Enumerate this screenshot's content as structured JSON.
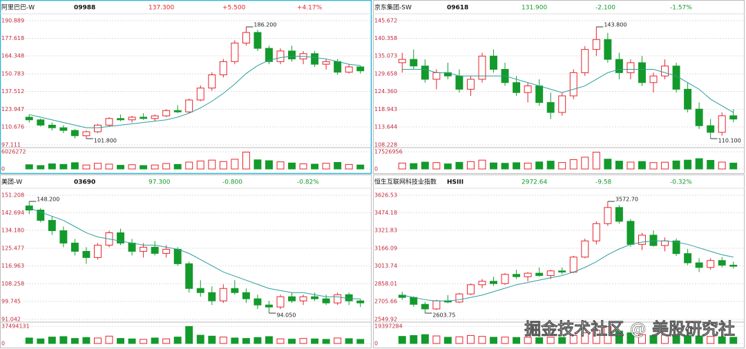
{
  "watermark": "掘金技术社区 @ 美股研究社",
  "up_color": "#e8212a",
  "down_color": "#139a2b",
  "line_color": "#2a9d9a",
  "chart_data": [
    {
      "type": "candlestick",
      "title": "阿里巴巴-W",
      "code": "09988",
      "price": "137.300",
      "change": "+5.500",
      "change_pct": "+4.17%",
      "color": "#e8212a",
      "selected": true,
      "ylim": [
        97.111,
        190.889
      ],
      "yticks": [
        190.889,
        177.618,
        164.348,
        150.783,
        137.512,
        123.947,
        110.676,
        97.111
      ],
      "vol_ylim": [
        0,
        6026272
      ],
      "vol_ticks": [
        6026272,
        0
      ],
      "annotations": [
        {
          "value": 186.2,
          "label": "186.200"
        },
        {
          "value": 101.8,
          "label": "101.800"
        }
      ],
      "candles": [
        [
          118,
          120,
          114,
          116
        ],
        [
          116,
          117,
          111,
          112
        ],
        [
          112,
          114,
          108,
          110
        ],
        [
          110,
          112,
          106,
          108
        ],
        [
          108,
          109,
          102,
          104
        ],
        [
          104,
          108,
          101.8,
          107
        ],
        [
          107,
          113,
          106,
          112
        ],
        [
          112,
          118,
          111,
          117
        ],
        [
          117,
          120,
          115,
          116
        ],
        [
          116,
          119,
          114,
          118
        ],
        [
          118,
          121,
          116,
          117
        ],
        [
          117,
          120,
          115,
          119
        ],
        [
          119,
          124,
          118,
          123
        ],
        [
          123,
          127,
          121,
          122
        ],
        [
          122,
          132,
          121,
          131
        ],
        [
          131,
          142,
          130,
          140
        ],
        [
          140,
          152,
          138,
          150
        ],
        [
          150,
          162,
          148,
          160
        ],
        [
          160,
          176,
          158,
          174
        ],
        [
          174,
          186.2,
          172,
          182
        ],
        [
          182,
          184,
          168,
          170
        ],
        [
          170,
          172,
          158,
          160
        ],
        [
          160,
          170,
          158,
          168
        ],
        [
          168,
          172,
          160,
          162
        ],
        [
          162,
          168,
          158,
          166
        ],
        [
          166,
          168,
          156,
          158
        ],
        [
          158,
          162,
          154,
          160
        ],
        [
          160,
          162,
          150,
          152
        ],
        [
          152,
          158,
          151,
          156
        ],
        [
          156,
          157,
          151,
          153
        ]
      ],
      "line": [
        120,
        118,
        116,
        114,
        112,
        110,
        110,
        111,
        112,
        113,
        114,
        115,
        116,
        118,
        121,
        125,
        130,
        136,
        143,
        151,
        157,
        161,
        163,
        164,
        164,
        163,
        162,
        160,
        158,
        157
      ],
      "volumes": [
        1500000,
        1200000,
        1800000,
        1600000,
        2200000,
        1400000,
        2000000,
        1700000,
        1300000,
        1500000,
        1200000,
        1400000,
        1900000,
        1600000,
        2400000,
        2800000,
        3100000,
        2600000,
        3400000,
        5900000,
        3200000,
        2900000,
        2500000,
        2100000,
        1800000,
        1700000,
        2000000,
        2300000,
        1600000,
        1400000
      ]
    },
    {
      "type": "candlestick",
      "title": "京东集团-SW",
      "code": "09618",
      "price": "131.900",
      "change": "-2.100",
      "change_pct": "-1.57%",
      "color": "#139a2b",
      "selected": false,
      "ylim": [
        108.228,
        145.672
      ],
      "yticks": [
        145.672,
        140.358,
        135.073,
        129.658,
        {
          "value": 124.36,
          "label": "124.360"
        },
        118.943,
        113.644,
        108.228
      ],
      "vol_ylim": [
        0,
        17526956
      ],
      "vol_ticks": [
        17526956,
        0
      ],
      "annotations": [
        {
          "value": 143.8,
          "label": "143.800"
        },
        {
          "value": 110.1,
          "label": "110.100"
        }
      ],
      "candles": [
        [
          133,
          136,
          130,
          134
        ],
        [
          134,
          137,
          131,
          132
        ],
        [
          132,
          134,
          127,
          128
        ],
        [
          128,
          131,
          125,
          130
        ],
        [
          130,
          133,
          128,
          129
        ],
        [
          129,
          131,
          124,
          125
        ],
        [
          125,
          129,
          123,
          128
        ],
        [
          128,
          136,
          127,
          135
        ],
        [
          135,
          137,
          130,
          131
        ],
        [
          131,
          133,
          126,
          127
        ],
        [
          127,
          129,
          123,
          124
        ],
        [
          124,
          127,
          121,
          126
        ],
        [
          126,
          128,
          120,
          121
        ],
        [
          121,
          124,
          116,
          118
        ],
        [
          118,
          124,
          117,
          123
        ],
        [
          123,
          131,
          122,
          130
        ],
        [
          130,
          138,
          129,
          137
        ],
        [
          137,
          143.8,
          135,
          140
        ],
        [
          140,
          142,
          133,
          134
        ],
        [
          134,
          136,
          128,
          130
        ],
        [
          130,
          134,
          128,
          133
        ],
        [
          133,
          135,
          126,
          127
        ],
        [
          127,
          130,
          124,
          129
        ],
        [
          129,
          134,
          128,
          132
        ],
        [
          132,
          133,
          124,
          125
        ],
        [
          125,
          127,
          118,
          119
        ],
        [
          119,
          121,
          113,
          114
        ],
        [
          114,
          116,
          110.1,
          112
        ],
        [
          112,
          118,
          111,
          117
        ],
        [
          117,
          119,
          115,
          116
        ]
      ],
      "line": [
        131,
        131,
        131,
        130,
        130,
        129,
        129,
        129,
        129,
        129,
        128,
        127,
        126,
        125,
        124,
        125,
        126,
        128,
        130,
        131,
        131,
        131,
        131,
        130,
        129,
        127,
        125,
        122,
        120,
        118
      ],
      "volumes": [
        6000000,
        5500000,
        7000000,
        6500000,
        5200000,
        6800000,
        7500000,
        9000000,
        6200000,
        5800000,
        6400000,
        6000000,
        7200000,
        8000000,
        6600000,
        9500000,
        12000000,
        17000000,
        10000000,
        8000000,
        7000000,
        7600000,
        6500000,
        6900000,
        8200000,
        9000000,
        10500000,
        8800000,
        7000000,
        6000000
      ]
    },
    {
      "type": "candlestick",
      "title": "美团-W",
      "code": "03690",
      "price": "97.300",
      "change": "-0.800",
      "change_pct": "-0.82%",
      "color": "#139a2b",
      "selected": false,
      "ylim": [
        91.042,
        151.208
      ],
      "yticks": [
        151.208,
        142.694,
        {
          "value": 134.18,
          "label": "134.180"
        },
        125.477,
        116.963,
        108.258,
        99.745,
        91.042
      ],
      "vol_ylim": [
        0,
        37494131
      ],
      "vol_ticks": [
        37494131,
        0
      ],
      "annotations": [
        {
          "value": 148.2,
          "label": "148.200"
        },
        {
          "value": 94.05,
          "label": "94.050"
        }
      ],
      "candles": [
        [
          146,
          148.2,
          142,
          144
        ],
        [
          144,
          145,
          138,
          139
        ],
        [
          139,
          141,
          132,
          134
        ],
        [
          134,
          136,
          126,
          128
        ],
        [
          128,
          130,
          122,
          124
        ],
        [
          124,
          126,
          118,
          121
        ],
        [
          121,
          128,
          120,
          127
        ],
        [
          127,
          134,
          126,
          133
        ],
        [
          133,
          135,
          127,
          128
        ],
        [
          128,
          130,
          122,
          124
        ],
        [
          124,
          128,
          121,
          126
        ],
        [
          126,
          129,
          122,
          123
        ],
        [
          123,
          127,
          121,
          125
        ],
        [
          125,
          126,
          117,
          118
        ],
        [
          118,
          119,
          104,
          106
        ],
        [
          106,
          110,
          102,
          104
        ],
        [
          104,
          107,
          98,
          100
        ],
        [
          100,
          108,
          99,
          106
        ],
        [
          106,
          110,
          103,
          104
        ],
        [
          104,
          106,
          99,
          101
        ],
        [
          101,
          103,
          96,
          98
        ],
        [
          98,
          100,
          94.05,
          97
        ],
        [
          97,
          103,
          96,
          102
        ],
        [
          102,
          104,
          99,
          100
        ],
        [
          100,
          103,
          98,
          102
        ],
        [
          102,
          104,
          100,
          101
        ],
        [
          101,
          103,
          98,
          99
        ],
        [
          99,
          104,
          98,
          103
        ],
        [
          103,
          104,
          98,
          100
        ],
        [
          100,
          101,
          97,
          99
        ]
      ],
      "line": [
        145,
        143,
        141,
        139,
        136,
        133,
        131,
        130,
        129,
        128,
        127,
        127,
        126,
        125,
        123,
        120,
        117,
        114,
        112,
        110,
        108,
        106,
        105,
        104,
        104,
        103,
        102,
        102,
        101,
        101
      ],
      "volumes": [
        12000000,
        10000000,
        14000000,
        15000000,
        11000000,
        13000000,
        12000000,
        16000000,
        11000000,
        10000000,
        9000000,
        12000000,
        10000000,
        14000000,
        37000000,
        18000000,
        16000000,
        14000000,
        12000000,
        11000000,
        13000000,
        15000000,
        10000000,
        9500000,
        11000000,
        10000000,
        9000000,
        12000000,
        10500000,
        9000000
      ]
    },
    {
      "type": "candlestick",
      "title": "恒生互联网科技业指数",
      "code": "HSIII",
      "price": "2972.64",
      "change": "-9.58",
      "change_pct": "-0.32%",
      "color": "#139a2b",
      "selected": false,
      "ylim": [
        2549.92,
        3626.53
      ],
      "yticks": [
        3626.53,
        3474.18,
        3321.83,
        3166.09,
        3013.74,
        2858.01,
        2705.66,
        2549.92
      ],
      "vol_ylim": [
        0,
        19397284
      ],
      "vol_ticks": [
        19397284,
        0
      ],
      "annotations": [
        {
          "value": 3572.7,
          "label": "3572.70"
        },
        {
          "value": 2603.75,
          "label": "2603.75"
        }
      ],
      "candles": [
        [
          2760,
          2790,
          2720,
          2740
        ],
        [
          2740,
          2750,
          2660,
          2680
        ],
        [
          2680,
          2700,
          2603.75,
          2640
        ],
        [
          2640,
          2720,
          2630,
          2710
        ],
        [
          2710,
          2760,
          2690,
          2700
        ],
        [
          2700,
          2780,
          2690,
          2770
        ],
        [
          2770,
          2860,
          2760,
          2850
        ],
        [
          2850,
          2900,
          2820,
          2880
        ],
        [
          2880,
          2920,
          2840,
          2860
        ],
        [
          2860,
          2950,
          2850,
          2940
        ],
        [
          2940,
          2980,
          2900,
          2920
        ],
        [
          2920,
          2960,
          2880,
          2950
        ],
        [
          2950,
          3000,
          2920,
          2930
        ],
        [
          2930,
          2980,
          2900,
          2970
        ],
        [
          2970,
          3000,
          2940,
          2960
        ],
        [
          2960,
          3100,
          2950,
          3090
        ],
        [
          3090,
          3250,
          3080,
          3230
        ],
        [
          3230,
          3400,
          3200,
          3380
        ],
        [
          3380,
          3572.7,
          3360,
          3520
        ],
        [
          3520,
          3540,
          3380,
          3400
        ],
        [
          3400,
          3420,
          3180,
          3200
        ],
        [
          3200,
          3300,
          3150,
          3280
        ],
        [
          3280,
          3320,
          3180,
          3190
        ],
        [
          3190,
          3260,
          3140,
          3230
        ],
        [
          3230,
          3250,
          3100,
          3120
        ],
        [
          3120,
          3160,
          3020,
          3040
        ],
        [
          3040,
          3080,
          2960,
          3000
        ],
        [
          3000,
          3080,
          2980,
          3060
        ],
        [
          3060,
          3090,
          3000,
          3020
        ],
        [
          3020,
          3050,
          2990,
          3010
        ]
      ],
      "line": [
        2760,
        2740,
        2720,
        2710,
        2710,
        2720,
        2740,
        2760,
        2790,
        2820,
        2850,
        2870,
        2890,
        2910,
        2930,
        2960,
        3000,
        3050,
        3110,
        3160,
        3200,
        3220,
        3230,
        3230,
        3220,
        3200,
        3170,
        3140,
        3110,
        3090
      ],
      "volumes": [
        8000000,
        9000000,
        10000000,
        8500000,
        7000000,
        7500000,
        9000000,
        8000000,
        7000000,
        7200000,
        6800000,
        7000000,
        6500000,
        7000000,
        6800000,
        9000000,
        12000000,
        15000000,
        19000000,
        14000000,
        12000000,
        10000000,
        9000000,
        9500000,
        10000000,
        9000000,
        8500000,
        8000000,
        7500000,
        7000000
      ]
    }
  ]
}
